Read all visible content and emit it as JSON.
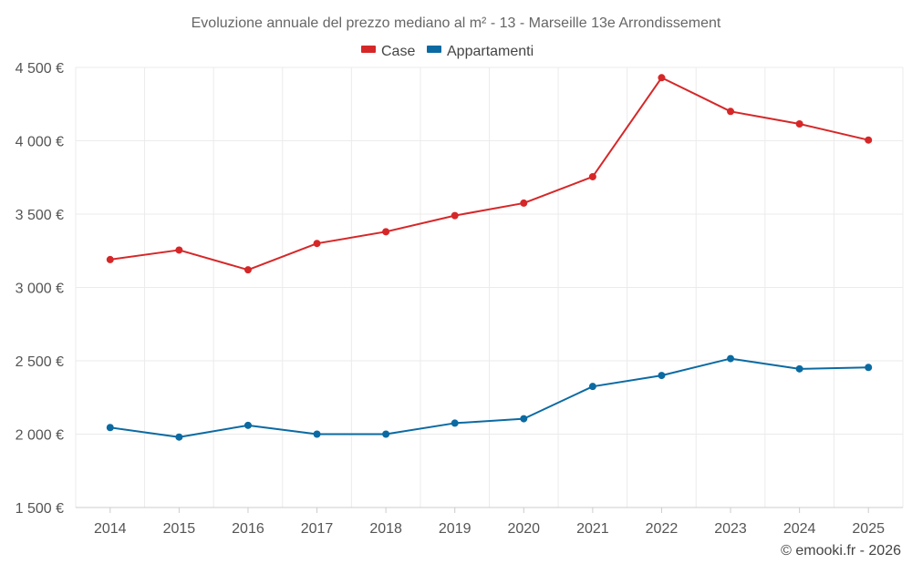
{
  "chart_data": {
    "type": "line",
    "title": "Evoluzione annuale del prezzo mediano al m² - 13 - Marseille 13e Arrondissement",
    "xlabel": "",
    "ylabel": "",
    "categories": [
      "2014",
      "2015",
      "2016",
      "2017",
      "2018",
      "2019",
      "2020",
      "2021",
      "2022",
      "2023",
      "2024",
      "2025"
    ],
    "ylim": [
      1500,
      4500
    ],
    "yticks": [
      1500,
      2000,
      2500,
      3000,
      3500,
      4000,
      4500
    ],
    "ytick_labels": [
      "1 500 €",
      "2 000 €",
      "2 500 €",
      "3 000 €",
      "3 500 €",
      "4 000 €",
      "4 500 €"
    ],
    "grid": true,
    "legend_position": "top-center",
    "series": [
      {
        "name": "Case",
        "color": "#d62728",
        "values": [
          3190,
          3255,
          3120,
          3300,
          3380,
          3490,
          3575,
          3755,
          4430,
          4200,
          4115,
          4005
        ]
      },
      {
        "name": "Appartamenti",
        "color": "#0b6aa2",
        "values": [
          2045,
          1980,
          2060,
          2000,
          2000,
          2075,
          2105,
          2325,
          2400,
          2515,
          2445,
          2455
        ]
      }
    ],
    "credit": "© emooki.fr - 2026"
  }
}
